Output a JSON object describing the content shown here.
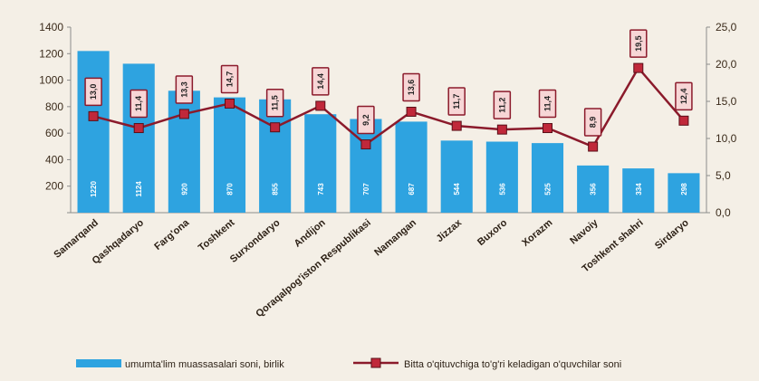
{
  "chart_data": {
    "type": "bar",
    "categories": [
      "Samarqand",
      "Qashqadaryo",
      "Farg'ona",
      "Toshkent",
      "Surxondaryo",
      "Andijon",
      "Qoraqalpog'iston Respublikasi",
      "Namangan",
      "Jizzax",
      "Buxoro",
      "Xorazm",
      "Navoiy",
      "Toshkent shahri",
      "Sirdaryo"
    ],
    "series": [
      {
        "name": "umumta'lim muassasalari soni, birlik",
        "type": "bar",
        "axis": "left",
        "values": [
          1220,
          1124,
          920,
          870,
          855,
          743,
          707,
          687,
          544,
          536,
          525,
          356,
          334,
          298
        ],
        "labels": [
          "1220",
          "1124",
          "920",
          "870",
          "855",
          "743",
          "707",
          "687",
          "544",
          "536",
          "525",
          "356",
          "334",
          "298"
        ],
        "color": "#2ea3e0"
      },
      {
        "name": "Bitta o'qituvchiga to'g'ri keladigan o'quvchilar soni",
        "type": "line",
        "axis": "right",
        "values": [
          13.0,
          11.4,
          13.3,
          14.7,
          11.5,
          14.4,
          9.2,
          13.6,
          11.7,
          11.2,
          11.4,
          8.9,
          19.5,
          12.4
        ],
        "labels": [
          "13,0",
          "11,4",
          "13,3",
          "14,7",
          "11,5",
          "14,4",
          "9,2",
          "13,6",
          "11,7",
          "11,2",
          "11,4",
          "8,9",
          "19,5",
          "12,4"
        ],
        "color": "#8b1a2b"
      }
    ],
    "y_left": {
      "ylim": [
        0,
        1400
      ],
      "ticks": [
        "",
        "200",
        "400",
        "600",
        "800",
        "1000",
        "1200",
        "1400"
      ]
    },
    "y_right": {
      "ylim": [
        0,
        25
      ],
      "ticks": [
        "0,0",
        "5,0",
        "10,0",
        "15,0",
        "20,0",
        "25,0"
      ]
    },
    "legend_position": "bottom",
    "grid": false
  }
}
